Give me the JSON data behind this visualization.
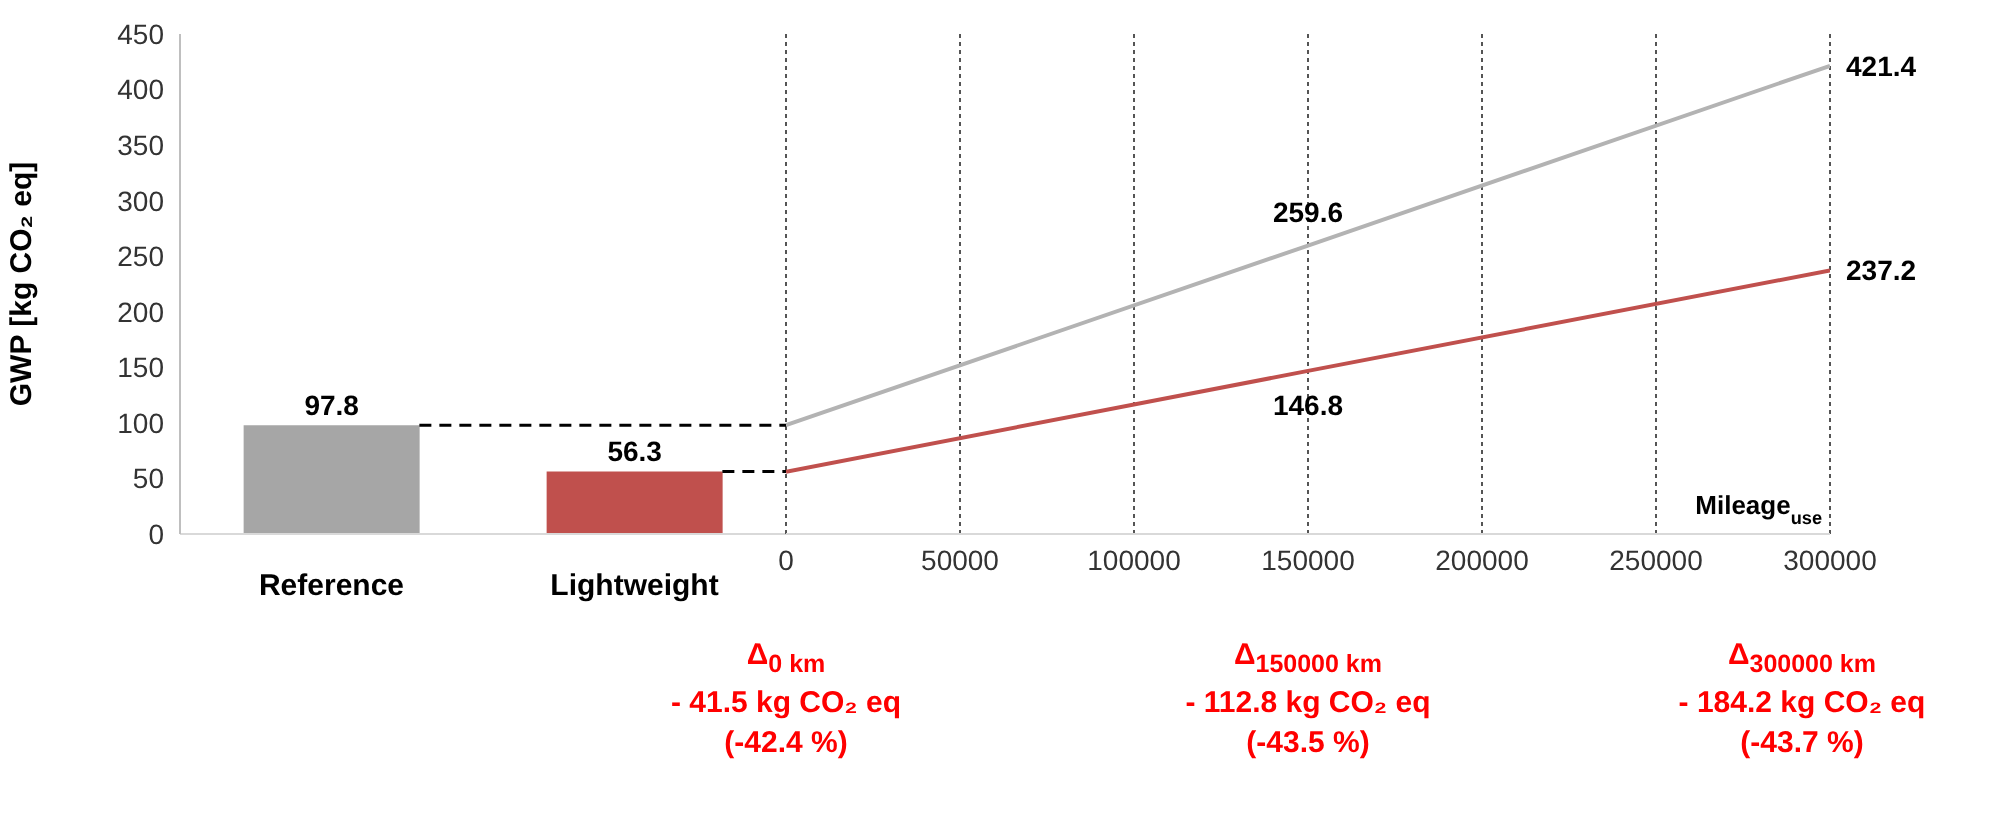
{
  "chart_data": [
    {
      "type": "bar",
      "ylabel": "GWP [kg CO₂ eq]",
      "categories": [
        "Reference",
        "Lightweight"
      ],
      "values": [
        97.8,
        56.3
      ],
      "colors": [
        "#a6a6a6",
        "#c0504d"
      ],
      "ylim": [
        0,
        450
      ],
      "yticks": [
        0,
        50,
        100,
        150,
        200,
        250,
        300,
        350,
        400,
        450
      ],
      "data_labels": true,
      "ref_lines": [
        {
          "axis": "y",
          "value": 97.8,
          "color": "#000000",
          "line_style": "dashed"
        },
        {
          "axis": "y",
          "value": 56.3,
          "color": "#000000",
          "line_style": "dashed"
        }
      ]
    },
    {
      "type": "line",
      "xlabel": "Mileage$_{use}$",
      "x": [
        0,
        150000,
        300000
      ],
      "series": [
        {
          "color": "#b3b3b3",
          "values": [
            98,
            259.6,
            421.4
          ],
          "value_labels": [
            null,
            "259.6",
            "421.4"
          ]
        },
        {
          "color": "#c0504d",
          "values": [
            56,
            146.8,
            237.2
          ],
          "value_labels": [
            null,
            "146.8",
            "237.2"
          ]
        }
      ],
      "xlim": [
        0,
        300000
      ],
      "xticks": [
        0,
        50000,
        100000,
        150000,
        200000,
        250000,
        300000
      ],
      "ylim": [
        0,
        450
      ],
      "tick_labels": "x",
      "grid": "x",
      "marker": "none",
      "annotations": [
        "Δ$_{0 km}$\n- 41.5 kg CO₂ eq\n(-42.4 %)",
        "Δ$_{150000 km}$\n- 112.8 kg CO₂ eq\n(-43.5 %)",
        "Δ$_{300000 km}$\n- 184.2 kg CO₂ eq\n(-43.7 %)"
      ]
    }
  ]
}
